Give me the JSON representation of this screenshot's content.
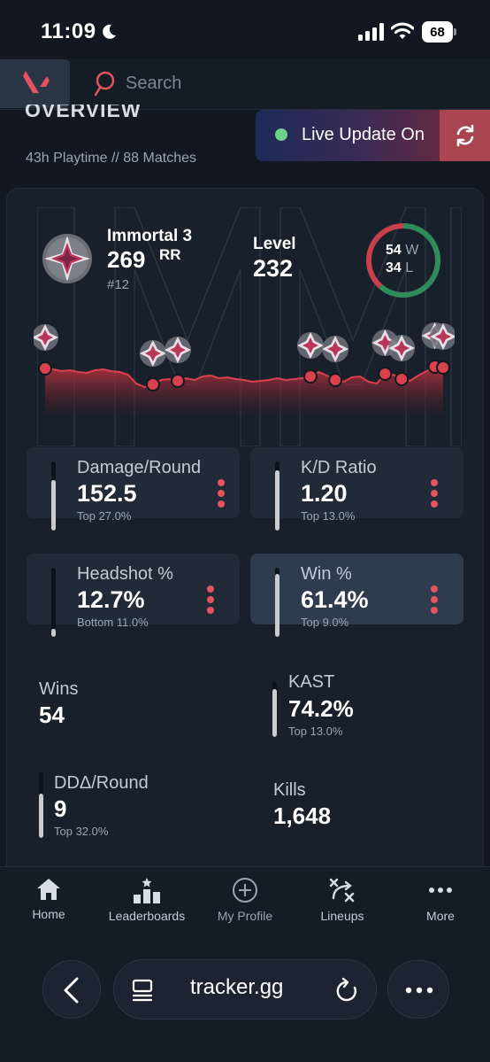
{
  "status_bar": {
    "time": "11:09",
    "battery": "68"
  },
  "header": {
    "search_placeholder": "Search"
  },
  "overview": {
    "title": "OVERVIEW",
    "meta": "43h Playtime  //  88 Matches",
    "live_update": "Live Update On"
  },
  "rank": {
    "name": "Immortal 3",
    "rr": "269",
    "rr_unit": "RR",
    "position": "#12",
    "level_label": "Level",
    "level_value": "232",
    "wins": "54",
    "wins_unit": "W",
    "losses": "34",
    "losses_unit": "L"
  },
  "stats": {
    "damage_round": {
      "label": "Damage/Round",
      "value": "152.5",
      "sub": "Top 27.0%",
      "fill": 0.73
    },
    "kd_ratio": {
      "label": "K/D Ratio",
      "value": "1.20",
      "sub": "Top 13.0%",
      "fill": 0.87
    },
    "headshot": {
      "label": "Headshot %",
      "value": "12.7%",
      "sub": "Bottom 11.0%",
      "fill": 0.11
    },
    "win_pct": {
      "label": "Win %",
      "value": "61.4%",
      "sub": "Top 9.0%",
      "fill": 0.91
    },
    "wins": {
      "label": "Wins",
      "value": "54"
    },
    "kast": {
      "label": "KAST",
      "value": "74.2%",
      "sub": "Top 13.0%",
      "fill": 0.87
    },
    "dd_round": {
      "label": "DDΔ/Round",
      "value": "9",
      "sub": "Top 32.0%",
      "fill": 0.68
    },
    "kills": {
      "label": "Kills",
      "value": "1,648"
    }
  },
  "nav": {
    "home": "Home",
    "leaderboards": "Leaderboards",
    "profile": "My Profile",
    "lineups": "Lineups",
    "more": "More"
  },
  "browser": {
    "url": "tracker.gg"
  },
  "colors": {
    "accent": "#e5535e",
    "win": "#2e8b5a",
    "loss": "#c8404c",
    "live": "#6fd08a"
  },
  "chart_data": {
    "type": "area",
    "series": [
      {
        "values": [
          51,
          50,
          48,
          49,
          47,
          46,
          49,
          50,
          48,
          47,
          44,
          34,
          30,
          33,
          38,
          39,
          37,
          40,
          38,
          42,
          43,
          40,
          41,
          39,
          38,
          36,
          37,
          38,
          40,
          38,
          39,
          40,
          42,
          47,
          43,
          38,
          36,
          41,
          42,
          36,
          34,
          45,
          44,
          39,
          37,
          43,
          48,
          53,
          52
        ]
      }
    ],
    "markers": [
      0,
      13,
      16,
      32,
      35,
      41,
      43,
      47,
      48
    ]
  }
}
